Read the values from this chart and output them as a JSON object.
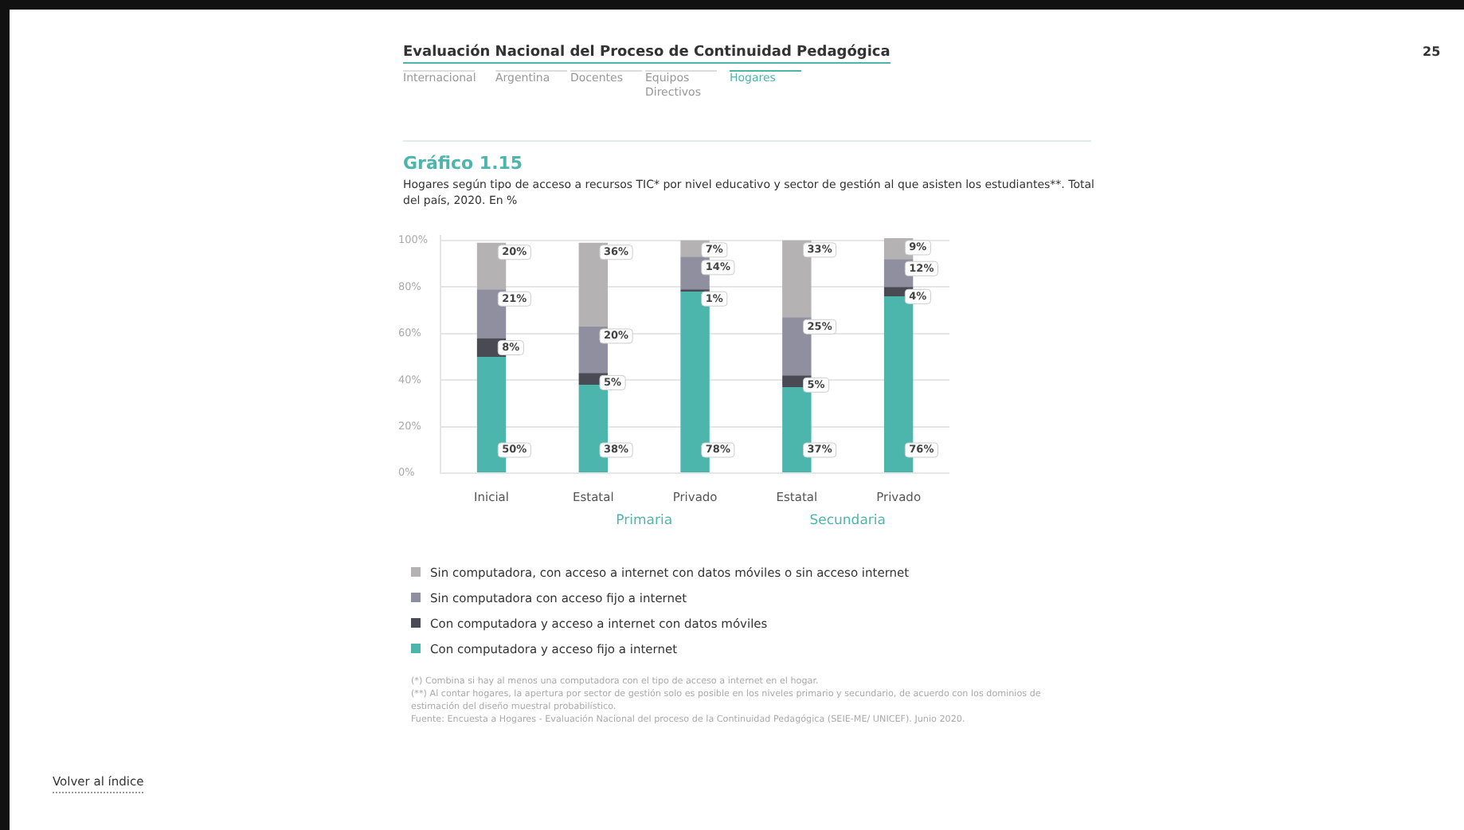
{
  "chart_data": {
    "type": "bar",
    "stacked": true,
    "title": "Gráfico 1.15",
    "subtitle": "Hogares según tipo de acceso a recursos TIC* por nivel educativo y sector de gestión al que asisten los estudiantes**. Total del país, 2020. En %",
    "categories": [
      "Inicial",
      "Estatal",
      "Privado",
      "Estatal",
      "Privado"
    ],
    "series": [
      {
        "name": "Con computadora y acceso fijo a internet",
        "color": "#4db6ac",
        "values": [
          50,
          38,
          78,
          37,
          76
        ],
        "value_labels": [
          "50%",
          "38%",
          "78%",
          "37%",
          "76%"
        ]
      },
      {
        "name": "Con computadora y acceso a internet con datos móviles",
        "color": "#4a4a55",
        "values": [
          8,
          5,
          1,
          5,
          4
        ],
        "value_labels": [
          "8%",
          "5%",
          "1%",
          "5%",
          "4%"
        ]
      },
      {
        "name": "Sin computadora con acceso fijo a internet",
        "color": "#8f8fa0",
        "values": [
          21,
          20,
          14,
          25,
          12
        ],
        "value_labels": [
          "21%",
          "20%",
          "14%",
          "25%",
          "12%"
        ]
      },
      {
        "name": "Sin computadora, con acceso a internet con datos móviles o sin acceso internet",
        "color": "#b4b2b2",
        "values": [
          20,
          36,
          7,
          33,
          9
        ],
        "value_labels": [
          "20%",
          "36%",
          "7%",
          "33%",
          "9%"
        ]
      }
    ],
    "ylim": [
      0,
      102
    ],
    "yticks": [
      {
        "value": 0,
        "label": "0%"
      },
      {
        "value": 20,
        "label": "20%"
      },
      {
        "value": 40,
        "label": "40%"
      },
      {
        "value": 60,
        "label": "60%"
      },
      {
        "value": 80,
        "label": "80%"
      },
      {
        "value": 100,
        "label": "100%"
      }
    ],
    "grid": "y",
    "legend": "bottom",
    "annotations": [
      "Evaluación Nacional del Proceso de Continuidad Pedagógica",
      "Internacional",
      "Argentina",
      "Docentes",
      "Equipos Directivos",
      "Hogares",
      "25",
      "Primaria",
      "Secundaria",
      "(*) Combina si hay al menos una computadora con el tipo de acceso a internet en el hogar.",
      "(**) Al contar hogares, la apertura por sector de gestión solo es posible en los niveles primario y secundario, de acuerdo con los dominios de estimación del diseño muestral probabilístico.",
      "Fuente: Encuesta a Hogares - Evaluación Nacional del proceso de la Continuidad Pedagógica (SEIE-ME/ UNICEF). Junio 2020.",
      "Volver al índice"
    ]
  }
}
